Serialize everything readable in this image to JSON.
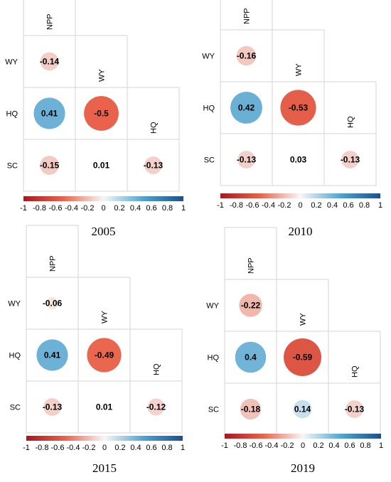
{
  "chart_data": [
    {
      "type": "heatmap",
      "title": "2005",
      "variables": [
        "NPP",
        "WY",
        "HQ",
        "SC"
      ],
      "cells": [
        {
          "row": "WY",
          "col": "NPP",
          "value": -0.14,
          "label": "-0.14"
        },
        {
          "row": "HQ",
          "col": "NPP",
          "value": 0.41,
          "label": "0.41"
        },
        {
          "row": "HQ",
          "col": "WY",
          "value": -0.5,
          "label": "-0.5"
        },
        {
          "row": "SC",
          "col": "NPP",
          "value": -0.15,
          "label": "-0.15"
        },
        {
          "row": "SC",
          "col": "WY",
          "value": 0.01,
          "label": "0.01"
        },
        {
          "row": "SC",
          "col": "HQ",
          "value": -0.13,
          "label": "-0.13"
        }
      ],
      "colorbar": {
        "range": [
          -1,
          1
        ],
        "ticks": [
          "-1",
          "-0.8",
          "-0.6",
          "-0.4",
          "-0.2",
          "0",
          "0.2",
          "0.4",
          "0.6",
          "0.8",
          "1"
        ]
      }
    },
    {
      "type": "heatmap",
      "title": "2010",
      "variables": [
        "NPP",
        "WY",
        "HQ",
        "SC"
      ],
      "cells": [
        {
          "row": "WY",
          "col": "NPP",
          "value": -0.16,
          "label": "-0.16"
        },
        {
          "row": "HQ",
          "col": "NPP",
          "value": 0.42,
          "label": "0.42"
        },
        {
          "row": "HQ",
          "col": "WY",
          "value": -0.53,
          "label": "-0.53"
        },
        {
          "row": "SC",
          "col": "NPP",
          "value": -0.13,
          "label": "-0.13"
        },
        {
          "row": "SC",
          "col": "WY",
          "value": 0.03,
          "label": "0.03"
        },
        {
          "row": "SC",
          "col": "HQ",
          "value": -0.13,
          "label": "-0.13"
        }
      ],
      "colorbar": {
        "range": [
          -1,
          1
        ],
        "ticks": [
          "-1",
          "-0.8",
          "-0.6",
          "-0.4",
          "-0.2",
          "0",
          "0.2",
          "0.4",
          "0.6",
          "0.8",
          "1"
        ]
      }
    },
    {
      "type": "heatmap",
      "title": "2015",
      "variables": [
        "NPP",
        "WY",
        "HQ",
        "SC"
      ],
      "cells": [
        {
          "row": "WY",
          "col": "NPP",
          "value": -0.06,
          "label": "-0.06"
        },
        {
          "row": "HQ",
          "col": "NPP",
          "value": 0.41,
          "label": "0.41"
        },
        {
          "row": "HQ",
          "col": "WY",
          "value": -0.49,
          "label": "-0.49"
        },
        {
          "row": "SC",
          "col": "NPP",
          "value": -0.13,
          "label": "-0.13"
        },
        {
          "row": "SC",
          "col": "WY",
          "value": 0.01,
          "label": "0.01"
        },
        {
          "row": "SC",
          "col": "HQ",
          "value": -0.12,
          "label": "-0.12"
        }
      ],
      "colorbar": {
        "range": [
          -1,
          1
        ],
        "ticks": [
          "-1",
          "-0.8",
          "-0.6",
          "-0.4",
          "-0.2",
          "0",
          "0.2",
          "0.4",
          "0.6",
          "0.8",
          "1"
        ]
      }
    },
    {
      "type": "heatmap",
      "title": "2019",
      "variables": [
        "NPP",
        "WY",
        "HQ",
        "SC"
      ],
      "cells": [
        {
          "row": "WY",
          "col": "NPP",
          "value": -0.22,
          "label": "-0.22"
        },
        {
          "row": "HQ",
          "col": "NPP",
          "value": 0.4,
          "label": "0.4"
        },
        {
          "row": "HQ",
          "col": "WY",
          "value": -0.59,
          "label": "-0.59"
        },
        {
          "row": "SC",
          "col": "NPP",
          "value": -0.18,
          "label": "-0.18"
        },
        {
          "row": "SC",
          "col": "WY",
          "value": 0.14,
          "label": "0.14"
        },
        {
          "row": "SC",
          "col": "HQ",
          "value": -0.13,
          "label": "-0.13"
        }
      ],
      "colorbar": {
        "range": [
          -1,
          1
        ],
        "ticks": [
          "-1",
          "-0.8",
          "-0.6",
          "-0.4",
          "-0.2",
          "0",
          "0.2",
          "0.4",
          "0.6",
          "0.8",
          "1"
        ]
      }
    }
  ],
  "colors": {
    "negative_strong": "#a9171f",
    "negative_mid": "#e9634c",
    "neutral": "#f7f7f7",
    "positive_mid": "#4fa3cf",
    "positive_strong": "#1d4f8c"
  }
}
